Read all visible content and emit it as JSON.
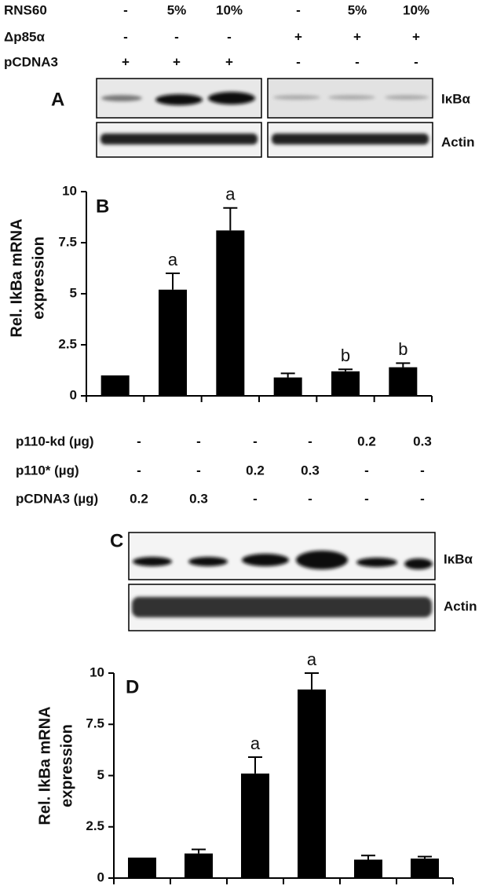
{
  "panel_a": {
    "label": "A",
    "conditions": [
      {
        "name": "RNS60",
        "values": [
          "-",
          "5%",
          "10%",
          "-",
          "5%",
          "10%"
        ]
      },
      {
        "name": "Δp85α",
        "values": [
          "-",
          "-",
          "-",
          "+",
          "+",
          "+"
        ]
      },
      {
        "name": "pCDNA3",
        "values": [
          "+",
          "+",
          "+",
          "-",
          "-",
          "-"
        ]
      }
    ],
    "blots": [
      "IκBα",
      "Actin"
    ]
  },
  "panel_c": {
    "label": "C",
    "conditions": [
      {
        "name": "p110-kd (µg)",
        "values": [
          "-",
          "-",
          "-",
          "-",
          "0.2",
          "0.3"
        ]
      },
      {
        "name": "p110* (µg)",
        "values": [
          "-",
          "-",
          "0.2",
          "0.3",
          "-",
          "-"
        ]
      },
      {
        "name": "pCDNA3 (µg)",
        "values": [
          "0.2",
          "0.3",
          "-",
          "-",
          "-",
          "-"
        ]
      }
    ],
    "blots": [
      "IκBα",
      "Actin"
    ]
  },
  "chart_data": [
    {
      "type": "bar",
      "panel_label": "B",
      "y_label": [
        "Rel. IkBa mRNA",
        "expression"
      ],
      "categories": [
        null,
        null,
        null,
        null,
        null,
        null
      ],
      "values": [
        1,
        5.2,
        8.1,
        0.9,
        1.2,
        1.4
      ],
      "errors": [
        null,
        0.8,
        1.1,
        0.2,
        0.1,
        0.2
      ],
      "annotations": [
        null,
        "a",
        "a",
        null,
        "b",
        "b"
      ],
      "color": "#000000",
      "ylim": [
        0,
        10
      ],
      "yticks": [
        0,
        2.5,
        5,
        7.5,
        10
      ]
    },
    {
      "type": "bar",
      "panel_label": "D",
      "y_label": [
        "Rel. IkBa mRNA",
        "expression"
      ],
      "categories": [
        null,
        null,
        null,
        null,
        null,
        null
      ],
      "values": [
        1,
        1.2,
        5.1,
        9.2,
        0.9,
        0.95
      ],
      "errors": [
        null,
        0.2,
        0.8,
        0.8,
        0.2,
        0.1
      ],
      "annotations": [
        null,
        null,
        "a",
        "a",
        null,
        null
      ],
      "color": "#000000",
      "ylim": [
        0,
        10
      ],
      "yticks": [
        0,
        2.5,
        5,
        7.5,
        10
      ]
    }
  ]
}
